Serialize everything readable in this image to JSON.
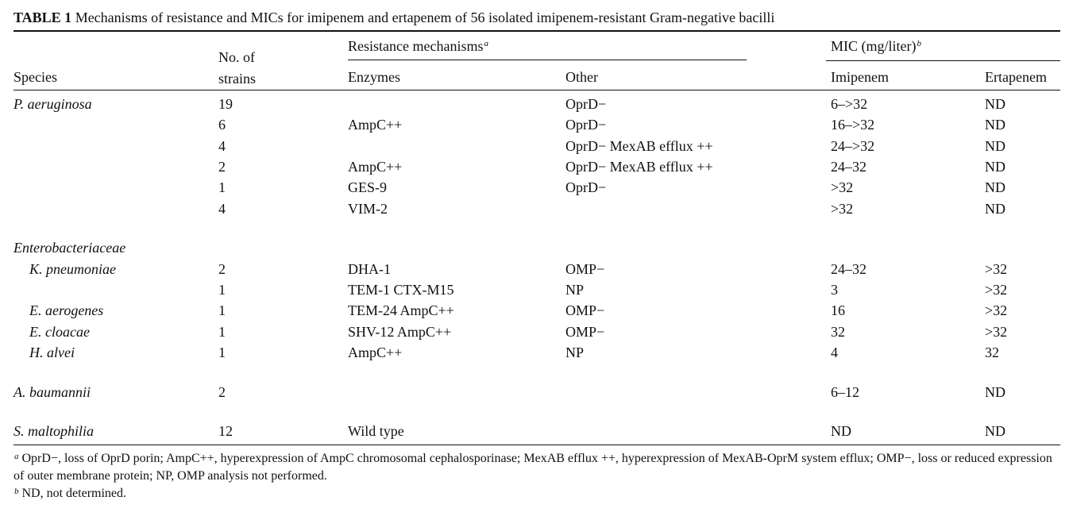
{
  "title": {
    "label": "TABLE 1",
    "text": "Mechanisms of resistance and MICs for imipenem and ertapenem of 56 isolated imipenem-resistant Gram-negative bacilli"
  },
  "header": {
    "resistance": {
      "text": "Resistance mechanisms",
      "note": "a"
    },
    "mic": {
      "text": "MIC (mg/liter)",
      "note": "b"
    },
    "columns": {
      "species": "Species",
      "strains": "No. of strains",
      "enzymes": "Enzymes",
      "other": "Other",
      "imipenem": "Imipenem",
      "ertapenem": "Ertapenem"
    }
  },
  "groups": [
    {
      "rows": [
        {
          "species": "P. aeruginosa",
          "strains": 19,
          "other": "OprD−",
          "imipenem": "6–>32",
          "ertapenem": "ND"
        },
        {
          "strains": 6,
          "enzymes": "AmpC++",
          "other": "OprD−",
          "imipenem": "16–>32",
          "ertapenem": "ND"
        },
        {
          "strains": 4,
          "other": "OprD− MexAB efflux ++",
          "imipenem": "24–>32",
          "ertapenem": "ND"
        },
        {
          "strains": 2,
          "enzymes": "AmpC++",
          "other": "OprD− MexAB efflux ++",
          "imipenem": "24–32",
          "ertapenem": "ND"
        },
        {
          "strains": 1,
          "enzymes": "GES-9",
          "other": "OprD−",
          "imipenem": ">32",
          "ertapenem": "ND"
        },
        {
          "strains": 4,
          "enzymes": "VIM-2",
          "imipenem": ">32",
          "ertapenem": "ND"
        }
      ]
    },
    {
      "name": "Enterobacteriaceae",
      "rows": [
        {
          "species": "K. pneumoniae",
          "strains": 2,
          "enzymes": "DHA-1",
          "other": "OMP−",
          "imipenem": "24–32",
          "ertapenem": ">32"
        },
        {
          "strains": 1,
          "enzymes": "TEM-1 CTX-M15",
          "other": "NP",
          "imipenem": 3,
          "ertapenem": ">32"
        },
        {
          "species": "E. aerogenes",
          "strains": 1,
          "enzymes": "TEM-24 AmpC++",
          "other": "OMP−",
          "imipenem": 16,
          "ertapenem": ">32"
        },
        {
          "species": "E. cloacae",
          "strains": 1,
          "enzymes": "SHV-12 AmpC++",
          "other": "OMP−",
          "imipenem": 32,
          "ertapenem": ">32"
        },
        {
          "species": "H. alvei",
          "strains": 1,
          "enzymes": "AmpC++",
          "other": "NP",
          "imipenem": 4,
          "ertapenem": 32
        }
      ]
    },
    {
      "rows": [
        {
          "species": "A. baumannii",
          "strains": 2,
          "imipenem": "6–12",
          "ertapenem": "ND"
        }
      ]
    },
    {
      "rows": [
        {
          "species": "S. maltophilia",
          "strains": 12,
          "enzymes": "Wild type",
          "imipenem": "ND",
          "ertapenem": "ND"
        }
      ]
    }
  ],
  "footnotes": [
    {
      "mark": "a",
      "text": "OprD−, loss of OprD porin; AmpC++, hyperexpression of AmpC chromosomal cephalosporinase; MexAB efflux ++, hyperexpression of MexAB-OprM system efflux; OMP−, loss or reduced expression of outer membrane protein; NP, OMP analysis not performed."
    },
    {
      "mark": "b",
      "text": "ND, not determined."
    }
  ]
}
